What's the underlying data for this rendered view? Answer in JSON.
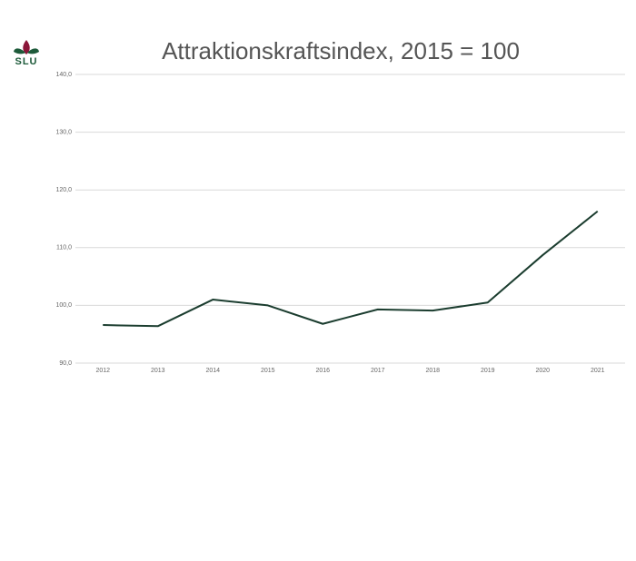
{
  "logo": "SLU",
  "chart_data": {
    "type": "line",
    "title": "Attraktionskraftsindex, 2015 = 100",
    "categories": [
      "2012",
      "2013",
      "2014",
      "2015",
      "2016",
      "2017",
      "2018",
      "2019",
      "2020",
      "2021"
    ],
    "series": [
      {
        "color": "#1b3d2f",
        "values": [
          96.6,
          96.4,
          101.0,
          100.0,
          96.8,
          99.3,
          99.1,
          100.5,
          108.7,
          116.3
        ]
      }
    ],
    "ylim": [
      90,
      140
    ],
    "yticks": [
      {
        "value": 90,
        "label": "90,0"
      },
      {
        "value": 100,
        "label": "100,0"
      },
      {
        "value": 110,
        "label": "110,0"
      },
      {
        "value": 120,
        "label": "120,0"
      },
      {
        "value": 130,
        "label": "130,0"
      },
      {
        "value": 140,
        "label": "140,0"
      }
    ],
    "grid": true
  }
}
